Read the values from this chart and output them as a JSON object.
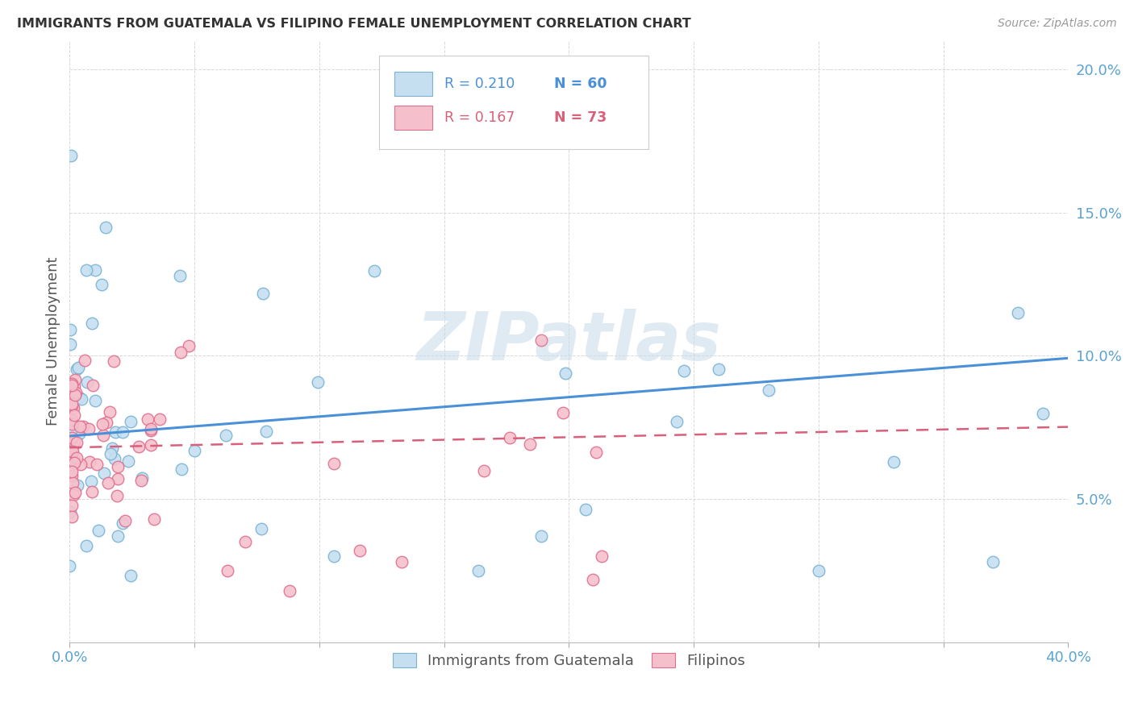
{
  "title": "IMMIGRANTS FROM GUATEMALA VS FILIPINO FEMALE UNEMPLOYMENT CORRELATION CHART",
  "source": "Source: ZipAtlas.com",
  "ylabel": "Female Unemployment",
  "xlim": [
    0.0,
    0.4
  ],
  "ylim": [
    0.0,
    0.21
  ],
  "color_blue": "#c5dff0",
  "color_blue_edge": "#7ab3d4",
  "color_pink": "#f5c0cc",
  "color_pink_edge": "#e07090",
  "color_blue_line": "#4a90d9",
  "color_pink_line": "#d9607a",
  "watermark_color": "#d0dde8",
  "grid_color": "#d8d8d8",
  "tick_color": "#5ba3d0",
  "title_color": "#333333",
  "ylabel_color": "#555555",
  "source_color": "#999999"
}
